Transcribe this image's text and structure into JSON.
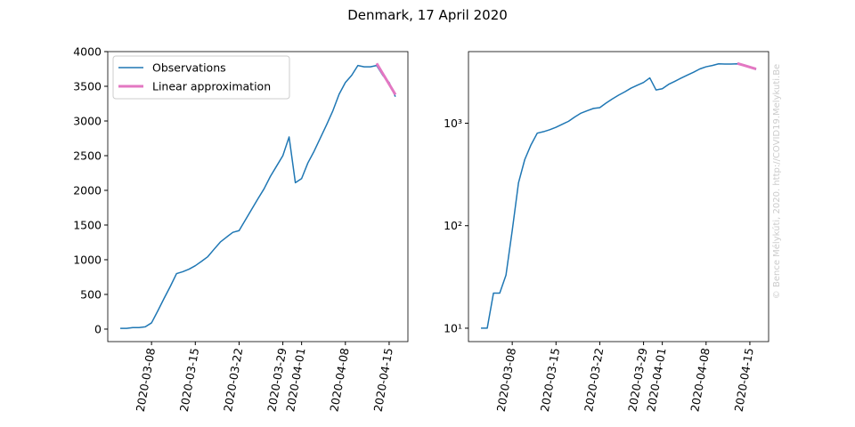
{
  "title": "Denmark, 17 April 2020",
  "watermark": "© Bence Mélykúti, 2020. http://COVID19.Melykuti.Be",
  "chart_data": [
    {
      "type": "line",
      "yscale": "linear",
      "legend": "upper left",
      "xlim": [
        "2020-03-01",
        "2020-04-18"
      ],
      "xticks": [
        "2020-03-08",
        "2020-03-15",
        "2020-03-22",
        "2020-03-29",
        "2020-04-01",
        "2020-04-08",
        "2020-04-15"
      ],
      "ylim": [
        -180,
        4000
      ],
      "yticks": [
        0,
        500,
        1000,
        1500,
        2000,
        2500,
        3000,
        3500,
        4000
      ],
      "series": [
        {
          "name": "Observations",
          "color": "#1f77b4",
          "width": 1.5,
          "x": [
            "2020-03-03",
            "2020-03-04",
            "2020-03-05",
            "2020-03-06",
            "2020-03-07",
            "2020-03-08",
            "2020-03-09",
            "2020-03-10",
            "2020-03-11",
            "2020-03-12",
            "2020-03-13",
            "2020-03-14",
            "2020-03-15",
            "2020-03-16",
            "2020-03-17",
            "2020-03-18",
            "2020-03-19",
            "2020-03-20",
            "2020-03-21",
            "2020-03-22",
            "2020-03-23",
            "2020-03-24",
            "2020-03-25",
            "2020-03-26",
            "2020-03-27",
            "2020-03-28",
            "2020-03-29",
            "2020-03-30",
            "2020-03-31",
            "2020-04-01",
            "2020-04-02",
            "2020-04-03",
            "2020-04-04",
            "2020-04-05",
            "2020-04-06",
            "2020-04-07",
            "2020-04-08",
            "2020-04-09",
            "2020-04-10",
            "2020-04-11",
            "2020-04-12",
            "2020-04-13",
            "2020-04-14",
            "2020-04-15",
            "2020-04-16"
          ],
          "values": [
            10,
            10,
            22,
            22,
            33,
            90,
            262,
            442,
            615,
            800,
            827,
            864,
            914,
            977,
            1044,
            1151,
            1255,
            1326,
            1395,
            1420,
            1572,
            1724,
            1877,
            2023,
            2200,
            2350,
            2500,
            2770,
            2110,
            2170,
            2395,
            2564,
            2755,
            2946,
            3147,
            3386,
            3555,
            3657,
            3800,
            3780,
            3780,
            3800,
            3656,
            3555,
            3350
          ]
        },
        {
          "name": "Linear approximation",
          "color": "#e377c2",
          "width": 3,
          "x": [
            "2020-04-13",
            "2020-04-14",
            "2020-04-15",
            "2020-04-16"
          ],
          "values": [
            3830,
            3680,
            3530,
            3380
          ]
        }
      ]
    },
    {
      "type": "line",
      "yscale": "log",
      "xlim": [
        "2020-03-01",
        "2020-04-18"
      ],
      "xticks": [
        "2020-03-08",
        "2020-03-15",
        "2020-03-22",
        "2020-03-29",
        "2020-04-01",
        "2020-04-08",
        "2020-04-15"
      ],
      "ylim": [
        7.4,
        5000
      ],
      "yticks": [
        {
          "value": 10,
          "label": "10¹"
        },
        {
          "value": 100,
          "label": "10²"
        },
        {
          "value": 1000,
          "label": "10³"
        }
      ],
      "series": [
        {
          "color": "#1f77b4",
          "width": 1.5,
          "x": [
            "2020-03-03",
            "2020-03-04",
            "2020-03-05",
            "2020-03-06",
            "2020-03-07",
            "2020-03-08",
            "2020-03-09",
            "2020-03-10",
            "2020-03-11",
            "2020-03-12",
            "2020-03-13",
            "2020-03-14",
            "2020-03-15",
            "2020-03-16",
            "2020-03-17",
            "2020-03-18",
            "2020-03-19",
            "2020-03-20",
            "2020-03-21",
            "2020-03-22",
            "2020-03-23",
            "2020-03-24",
            "2020-03-25",
            "2020-03-26",
            "2020-03-27",
            "2020-03-28",
            "2020-03-29",
            "2020-03-30",
            "2020-03-31",
            "2020-04-01",
            "2020-04-02",
            "2020-04-03",
            "2020-04-04",
            "2020-04-05",
            "2020-04-06",
            "2020-04-07",
            "2020-04-08",
            "2020-04-09",
            "2020-04-10",
            "2020-04-11",
            "2020-04-12",
            "2020-04-13",
            "2020-04-14",
            "2020-04-15",
            "2020-04-16"
          ],
          "values": [
            10,
            10,
            22,
            22,
            33,
            90,
            262,
            442,
            615,
            800,
            827,
            864,
            914,
            977,
            1044,
            1151,
            1255,
            1326,
            1395,
            1420,
            1572,
            1724,
            1877,
            2023,
            2200,
            2350,
            2500,
            2770,
            2110,
            2170,
            2395,
            2564,
            2755,
            2946,
            3147,
            3386,
            3555,
            3657,
            3800,
            3780,
            3780,
            3800,
            3656,
            3555,
            3350
          ]
        },
        {
          "color": "#e377c2",
          "width": 3,
          "x": [
            "2020-04-13",
            "2020-04-14",
            "2020-04-15",
            "2020-04-16"
          ],
          "values": [
            3830,
            3680,
            3530,
            3380
          ]
        }
      ]
    }
  ]
}
